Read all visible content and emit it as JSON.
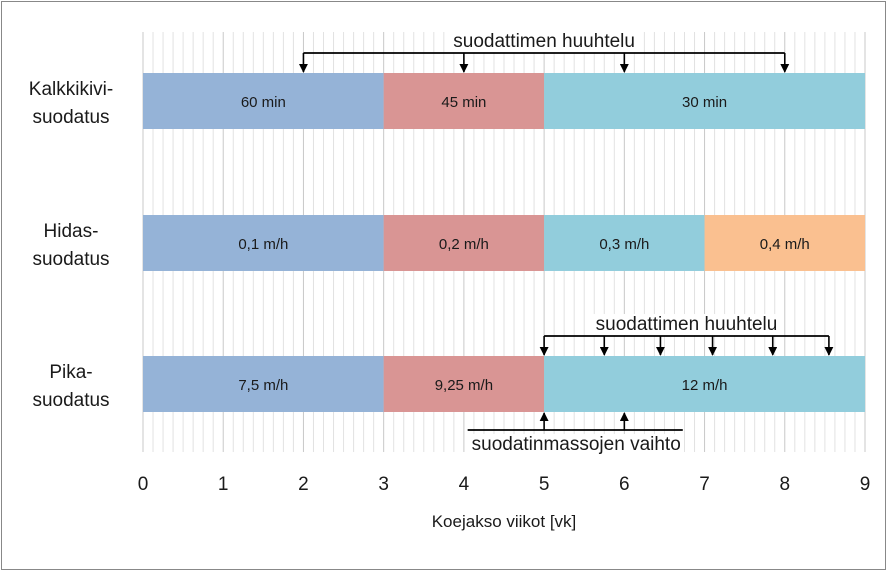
{
  "chart_data": {
    "type": "bar",
    "orientation": "horizontal-timeline",
    "xlabel": "Koejakso viikot [vk]",
    "xlim": [
      0,
      9
    ],
    "x_ticks": [
      "0",
      "1",
      "2",
      "3",
      "4",
      "5",
      "6",
      "7",
      "8",
      "9"
    ],
    "grid": "vertical minor gridlines",
    "colors": {
      "blue": "#95b3d7",
      "red": "#d99594",
      "cyan": "#92cddc",
      "orange": "#fac090"
    },
    "rows": [
      {
        "category": [
          "Kalkkikivi-",
          "suodatus"
        ],
        "segments": [
          {
            "start": 0,
            "end": 3,
            "label": "60 min",
            "color": "blue"
          },
          {
            "start": 3,
            "end": 5,
            "label": "45 min",
            "color": "red"
          },
          {
            "start": 5,
            "end": 9,
            "label": "30 min",
            "color": "cyan"
          }
        ]
      },
      {
        "category": [
          "Hidas-",
          "suodatus"
        ],
        "segments": [
          {
            "start": 0,
            "end": 3,
            "label": "0,1 m/h",
            "color": "blue"
          },
          {
            "start": 3,
            "end": 5,
            "label": "0,2 m/h",
            "color": "red"
          },
          {
            "start": 5,
            "end": 7,
            "label": "0,3 m/h",
            "color": "cyan"
          },
          {
            "start": 7,
            "end": 9,
            "label": "0,4 m/h",
            "color": "orange"
          }
        ]
      },
      {
        "category": [
          "Pika-",
          "suodatus"
        ],
        "segments": [
          {
            "start": 0,
            "end": 3,
            "label": "7,5 m/h",
            "color": "blue"
          },
          {
            "start": 3,
            "end": 5,
            "label": "9,25 m/h",
            "color": "red"
          },
          {
            "start": 5,
            "end": 9,
            "label": "12 m/h",
            "color": "cyan"
          }
        ]
      }
    ],
    "annotations": [
      {
        "text": "suodattimen huuhtelu",
        "row": 0,
        "position": "above",
        "arrows_at": [
          2,
          4,
          6,
          8
        ]
      },
      {
        "text": "suodattimen huuhtelu",
        "row": 2,
        "position": "above",
        "arrows_at": [
          5,
          5.75,
          6.45,
          7.1,
          7.85,
          8.55
        ]
      },
      {
        "text": "suodatinmassojen vaihto",
        "row": 2,
        "position": "below",
        "arrows_at": [
          5,
          6
        ]
      }
    ]
  }
}
